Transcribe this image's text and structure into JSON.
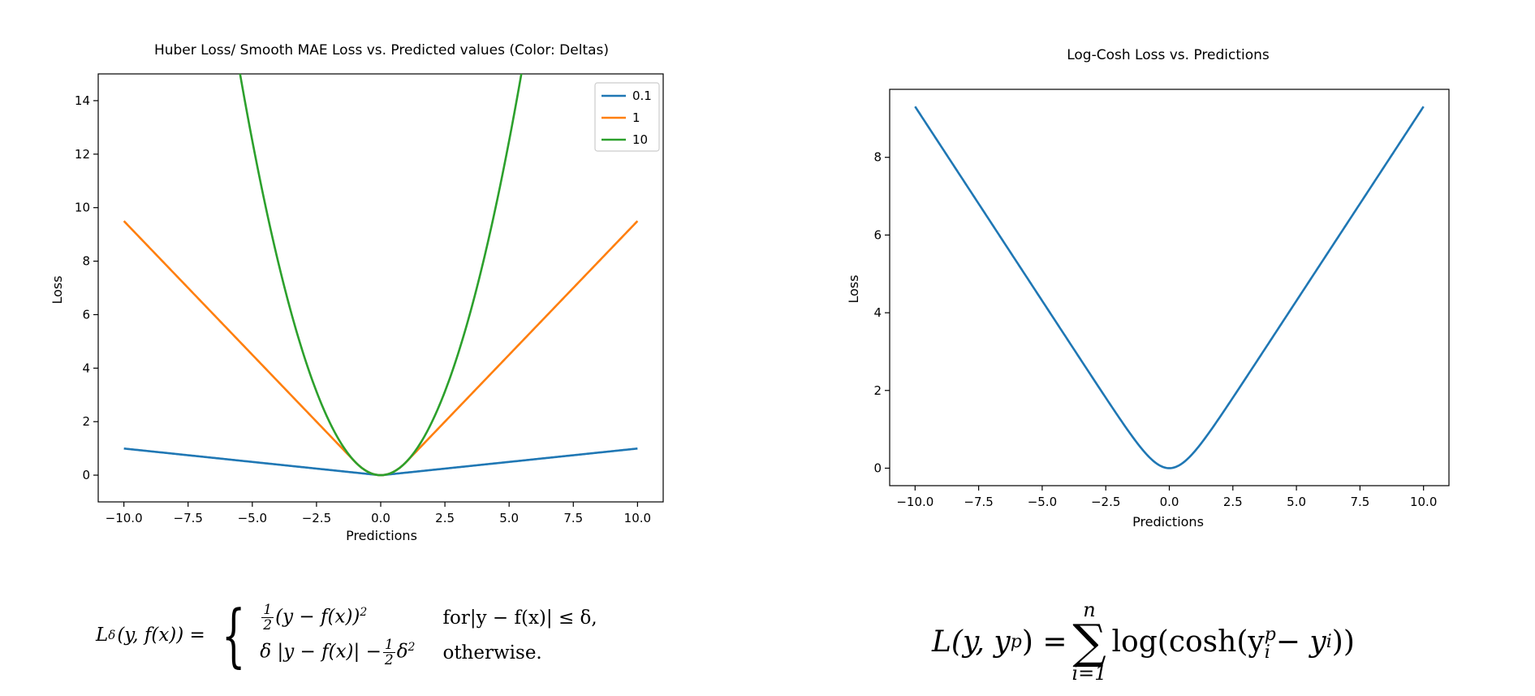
{
  "chart_data": [
    {
      "type": "line",
      "title": "Huber Loss/ Smooth MAE Loss vs. Predicted values (Color: Deltas)",
      "xlabel": "Predictions",
      "ylabel": "Loss",
      "xlim": [
        -11,
        11
      ],
      "ylim": [
        -1,
        15
      ],
      "xticks": [
        -10.0,
        -7.5,
        -5.0,
        -2.5,
        0.0,
        2.5,
        5.0,
        7.5,
        10.0
      ],
      "xtick_labels": [
        "−10.0",
        "−7.5",
        "−5.0",
        "−2.5",
        "0.0",
        "2.5",
        "5.0",
        "7.5",
        "10.0"
      ],
      "yticks": [
        0,
        2,
        4,
        6,
        8,
        10,
        12,
        14
      ],
      "ytick_labels": [
        "0",
        "2",
        "4",
        "6",
        "8",
        "10",
        "12",
        "14"
      ],
      "x_range": [
        -10,
        10
      ],
      "legend": "top-right",
      "grid": false,
      "series": [
        {
          "name": "0.1",
          "delta": 0.1,
          "color": "#1f77b4"
        },
        {
          "name": "1",
          "delta": 1,
          "color": "#ff7f0e"
        },
        {
          "name": "10",
          "delta": 10,
          "color": "#2ca02c"
        }
      ]
    },
    {
      "type": "line",
      "title": "Log-Cosh Loss vs. Predictions",
      "xlabel": "Predictions",
      "ylabel": "Loss",
      "xlim": [
        -11,
        11
      ],
      "ylim": [
        -0.45,
        9.75
      ],
      "xticks": [
        -10.0,
        -7.5,
        -5.0,
        -2.5,
        0.0,
        2.5,
        5.0,
        7.5,
        10.0
      ],
      "xtick_labels": [
        "−10.0",
        "−7.5",
        "−5.0",
        "−2.5",
        "0.0",
        "2.5",
        "5.0",
        "7.5",
        "10.0"
      ],
      "yticks": [
        0,
        2,
        4,
        6,
        8
      ],
      "ytick_labels": [
        "0",
        "2",
        "4",
        "6",
        "8"
      ],
      "x_range": [
        -10,
        10
      ],
      "grid": false,
      "series": [
        {
          "color": "#1f77b4"
        }
      ]
    }
  ],
  "formulas": {
    "huber": {
      "lhs": "L",
      "lhs_sub": "δ",
      "lhs_args": "(y, f(x)) =",
      "case1_num": "1",
      "case1_den": "2",
      "case1_expr": "(y − f(x))",
      "case1_exp": "2",
      "case1_cond": "for|y − f(x)| ≤ δ,",
      "case2_expr": "δ |y − f(x)| −",
      "case2_num": "1",
      "case2_den": "2",
      "case2_tail": "δ",
      "case2_exp": "2",
      "case2_cond": "otherwise."
    },
    "logcosh": {
      "lhs": "L(y, y",
      "lhs_sup": "p",
      "lhs_close": ") =",
      "sum_top": "n",
      "sum_symbol": "∑",
      "sum_bottom": "i=1",
      "body_start": "log(cosh(y",
      "body_sup": "p",
      "body_sub": "i",
      "body_mid": " − y",
      "body_sub2": "i",
      "body_end": "))"
    }
  }
}
